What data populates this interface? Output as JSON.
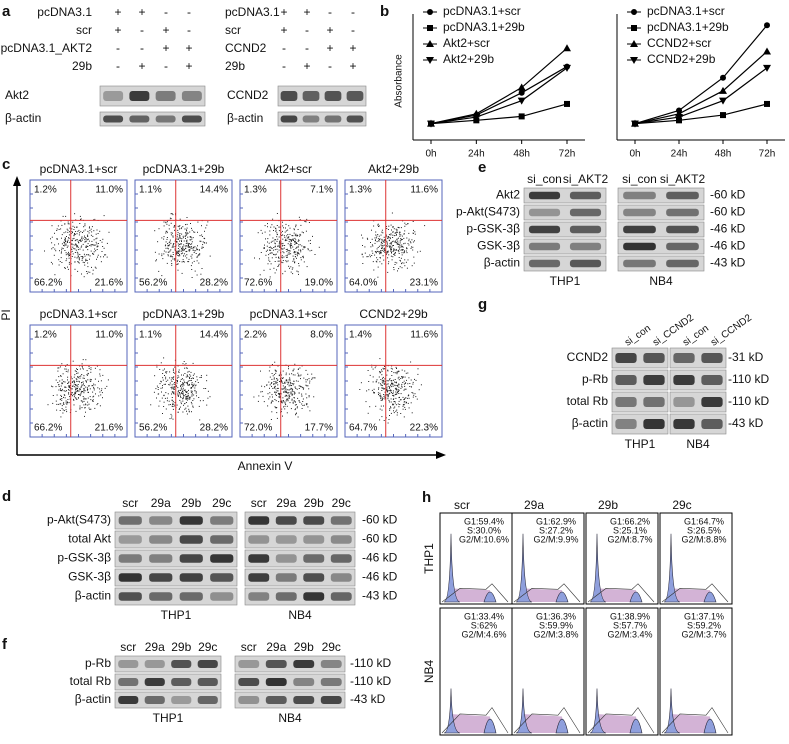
{
  "panel_a": {
    "label": "a",
    "left": {
      "rows": [
        {
          "name": "pcDNA3.1",
          "signs": [
            "+",
            "+",
            "-",
            "-"
          ]
        },
        {
          "name": "scr",
          "signs": [
            "+",
            "-",
            "+",
            "-"
          ]
        },
        {
          "name": "pcDNA3.1_AKT2",
          "signs": [
            "-",
            "-",
            "+",
            "+"
          ]
        },
        {
          "name": "29b",
          "signs": [
            "-",
            "+",
            "-",
            "+"
          ]
        }
      ],
      "bands": [
        "Akt2",
        "β-actin"
      ]
    },
    "right": {
      "rows": [
        {
          "name": "pcDNA3.1",
          "signs": [
            "+",
            "+",
            "-",
            "-"
          ]
        },
        {
          "name": "scr",
          "signs": [
            "+",
            "-",
            "+",
            "-"
          ]
        },
        {
          "name": "CCND2",
          "signs": [
            "-",
            "-",
            "+",
            "+"
          ]
        },
        {
          "name": "29b",
          "signs": [
            "-",
            "+",
            "-",
            "+"
          ]
        }
      ],
      "bands": [
        "CCND2",
        "β-actin"
      ]
    }
  },
  "panel_b": {
    "label": "b",
    "charts": [
      {
        "type": "line",
        "ylabel": "Absorbance",
        "categories": [
          "0h",
          "24h",
          "48h",
          "72h"
        ],
        "ylim": [
          0,
          1.8
        ],
        "series": [
          {
            "name": "pcDNA3.1+scr",
            "marker": "circle",
            "color": "#000000",
            "values": [
              0.25,
              0.38,
              0.72,
              1.12
            ]
          },
          {
            "name": "pcDNA3.1+29b",
            "marker": "square",
            "color": "#000000",
            "values": [
              0.25,
              0.3,
              0.36,
              0.55
            ]
          },
          {
            "name": "Akt2+scr",
            "marker": "triangle",
            "color": "#000000",
            "values": [
              0.25,
              0.4,
              0.8,
              1.4
            ]
          },
          {
            "name": "Akt2+29b",
            "marker": "triangle-down",
            "color": "#000000",
            "values": [
              0.25,
              0.35,
              0.6,
              1.1
            ]
          }
        ]
      },
      {
        "type": "line",
        "categories": [
          "0h",
          "24h",
          "48h",
          "72h"
        ],
        "ylim": [
          0,
          1.8
        ],
        "series": [
          {
            "name": "pcDNA3.1+scr",
            "marker": "circle",
            "color": "#000000",
            "values": [
              0.25,
              0.45,
              0.95,
              1.75
            ]
          },
          {
            "name": "pcDNA3.1+29b",
            "marker": "square",
            "color": "#000000",
            "values": [
              0.25,
              0.3,
              0.38,
              0.55
            ]
          },
          {
            "name": "CCND2+scr",
            "marker": "triangle",
            "color": "#000000",
            "values": [
              0.25,
              0.4,
              0.75,
              1.35
            ]
          },
          {
            "name": "CCND2+29b",
            "marker": "triangle-down",
            "color": "#000000",
            "values": [
              0.25,
              0.35,
              0.6,
              1.1
            ]
          }
        ]
      }
    ]
  },
  "panel_c": {
    "label": "c",
    "ylabel": "PI",
    "xlabel": "Annexin V",
    "plots": [
      {
        "title": "pcDNA3.1+scr",
        "quadrants": [
          "1.2%",
          "11.0%",
          "66.2%",
          "21.6%"
        ]
      },
      {
        "title": "pcDNA3.1+29b",
        "quadrants": [
          "1.1%",
          "14.4%",
          "56.2%",
          "28.2%"
        ]
      },
      {
        "title": "Akt2+scr",
        "quadrants": [
          "1.3%",
          "7.1%",
          "72.6%",
          "19.0%"
        ]
      },
      {
        "title": "Akt2+29b",
        "quadrants": [
          "1.3%",
          "11.6%",
          "64.0%",
          "23.1%"
        ]
      },
      {
        "title": "pcDNA3.1+scr",
        "quadrants": [
          "1.2%",
          "11.0%",
          "66.2%",
          "21.6%"
        ]
      },
      {
        "title": "pcDNA3.1+29b",
        "quadrants": [
          "1.1%",
          "14.4%",
          "56.2%",
          "28.2%"
        ]
      },
      {
        "title": "pcDNA3.1+scr",
        "quadrants": [
          "2.2%",
          "8.0%",
          "72.0%",
          "17.7%"
        ]
      },
      {
        "title": "CCND2+29b",
        "quadrants": [
          "1.4%",
          "11.6%",
          "64.7%",
          "22.3%"
        ]
      }
    ]
  },
  "panel_d": {
    "label": "d",
    "lanes": [
      "scr",
      "29a",
      "29b",
      "29c"
    ],
    "rows": [
      "p-Akt(S473)",
      "total Akt",
      "p-GSK-3β",
      "GSK-3β",
      "β-actin"
    ],
    "sizes": [
      "-60 kD",
      "-60 kD",
      "-46 kD",
      "-46 kD",
      "-43 kD"
    ],
    "cells": [
      "THP1",
      "NB4"
    ]
  },
  "panel_e": {
    "label": "e",
    "lanes": [
      "si_con",
      "si_AKT2"
    ],
    "rows": [
      "Akt2",
      "p-Akt(S473)",
      "p-GSK-3β",
      "GSK-3β",
      "β-actin"
    ],
    "sizes": [
      "-60 kD",
      "-60 kD",
      "-46 kD",
      "-46 kD",
      "-43 kD"
    ],
    "cells": [
      "THP1",
      "NB4"
    ]
  },
  "panel_f": {
    "label": "f",
    "lanes": [
      "scr",
      "29a",
      "29b",
      "29c"
    ],
    "rows": [
      "p-Rb",
      "total Rb",
      "β-actin"
    ],
    "sizes": [
      "-110 kD",
      "-110 kD",
      "-43 kD"
    ],
    "cells": [
      "THP1",
      "NB4"
    ]
  },
  "panel_g": {
    "label": "g",
    "lanes": [
      "si_con",
      "si_CCND2"
    ],
    "rows": [
      "CCND2",
      "p-Rb",
      "total Rb",
      "β-actin"
    ],
    "sizes": [
      "-31 kD",
      "-110 kD",
      "-110 kD",
      "-43 kD"
    ],
    "cells": [
      "THP1",
      "NB4"
    ]
  },
  "panel_h": {
    "label": "h",
    "columns": [
      "scr",
      "29a",
      "29b",
      "29c"
    ],
    "rows": [
      {
        "name": "THP1",
        "stats": [
          [
            "G1:59.4%",
            "S:30.0%",
            "G2/M:10.6%"
          ],
          [
            "G1:62.9%",
            "S:27.2%",
            "G2/M:9.9%"
          ],
          [
            "G1:66.2%",
            "S:25.1%",
            "G2/M:8.7%"
          ],
          [
            "G1:64.7%",
            "S:26.5%",
            "G2/M:8.8%"
          ]
        ]
      },
      {
        "name": "NB4",
        "stats": [
          [
            "G1:33.4%",
            "S:62%",
            "G2/M:4.6%"
          ],
          [
            "G1:36.3%",
            "S:59.9%",
            "G2/M:3.8%"
          ],
          [
            "G1:38.9%",
            "S:57.7%",
            "G2/M:3.4%"
          ],
          [
            "G1:37.1%",
            "S:59.2%",
            "G2/M:3.7%"
          ]
        ]
      }
    ]
  }
}
